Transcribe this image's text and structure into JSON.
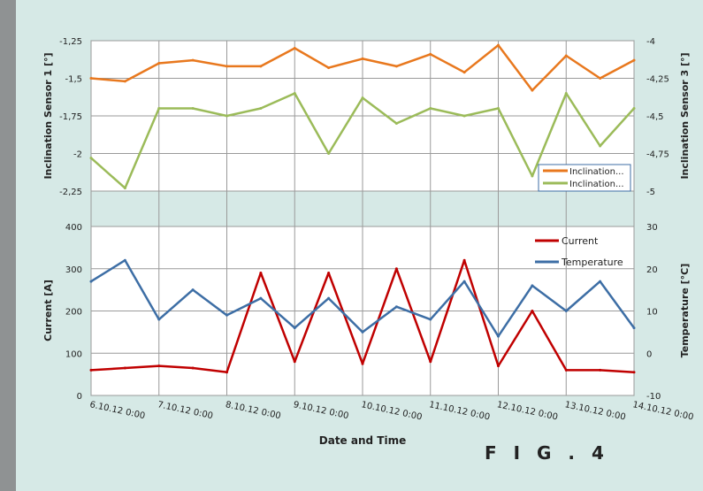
{
  "figure_label": "F I G .   4",
  "x_axis": {
    "label": "Date and Time",
    "ticks": [
      "6.10.12 0:00",
      "7.10.12 0:00",
      "8.10.12 0:00",
      "9.10.12 0:00",
      "10.10.12 0:00",
      "11.10.12 0:00",
      "12.10.12 0:00",
      "13.10.12 0:00",
      "14.10.12 0:00"
    ]
  },
  "colors": {
    "orange": "#e8781e",
    "green": "#9bbb59",
    "red": "#c00000",
    "blue": "#3d6ea5",
    "grid": "#9a9a9a"
  },
  "chart_data": [
    {
      "type": "line",
      "title": "",
      "ylabel": "Inclination Sensor 1 [°]",
      "y2label": "Inclination Sensor 3 [°]",
      "ylim": [
        -2.25,
        -1.25
      ],
      "y2lim": [
        -5,
        -4
      ],
      "yticks": [
        "-1,25",
        "-1,5",
        "-1,75",
        "-2",
        "-2,25"
      ],
      "y2ticks": [
        "-4",
        "-4,25",
        "-4,5",
        "-4,75",
        "-5"
      ],
      "legend_position": "bottom-right",
      "x": [
        0,
        0.5,
        1,
        1.5,
        2,
        2.5,
        3,
        3.5,
        4,
        4.5,
        5,
        5.5,
        6,
        6.5,
        7,
        7.5,
        8
      ],
      "series": [
        {
          "name": "Inclination...",
          "axis": "left",
          "values": [
            -1.5,
            -1.52,
            -1.4,
            -1.38,
            -1.42,
            -1.42,
            -1.3,
            -1.43,
            -1.37,
            -1.42,
            -1.34,
            -1.46,
            -1.28,
            -1.58,
            -1.35,
            -1.5,
            -1.38
          ]
        },
        {
          "name": "Inclination...",
          "axis": "right",
          "values": [
            -4.78,
            -4.98,
            -4.45,
            -4.45,
            -4.5,
            -4.45,
            -4.35,
            -4.75,
            -4.38,
            -4.55,
            -4.45,
            -4.5,
            -4.45,
            -4.9,
            -4.35,
            -4.7,
            -4.45
          ]
        }
      ]
    },
    {
      "type": "line",
      "title": "",
      "ylabel": "Current [A]",
      "y2label": "Temperature [°C]",
      "ylim": [
        0,
        400
      ],
      "y2lim": [
        -10,
        30
      ],
      "yticks": [
        "400",
        "300",
        "200",
        "100",
        "0"
      ],
      "y2ticks": [
        "30",
        "20",
        "10",
        "0",
        "-10"
      ],
      "legend_position": "top-right",
      "x": [
        0,
        0.5,
        1,
        1.5,
        2,
        2.5,
        3,
        3.5,
        4,
        4.5,
        5,
        5.5,
        6,
        6.5,
        7,
        7.5,
        8
      ],
      "series": [
        {
          "name": "Current",
          "axis": "left",
          "values": [
            60,
            65,
            70,
            65,
            55,
            290,
            80,
            290,
            75,
            300,
            80,
            320,
            70,
            200,
            60,
            60,
            55
          ]
        },
        {
          "name": "Temperature",
          "axis": "right",
          "values": [
            17,
            22,
            8,
            15,
            9,
            13,
            6,
            13,
            5,
            11,
            8,
            17,
            4,
            16,
            10,
            17,
            6
          ]
        }
      ]
    }
  ]
}
